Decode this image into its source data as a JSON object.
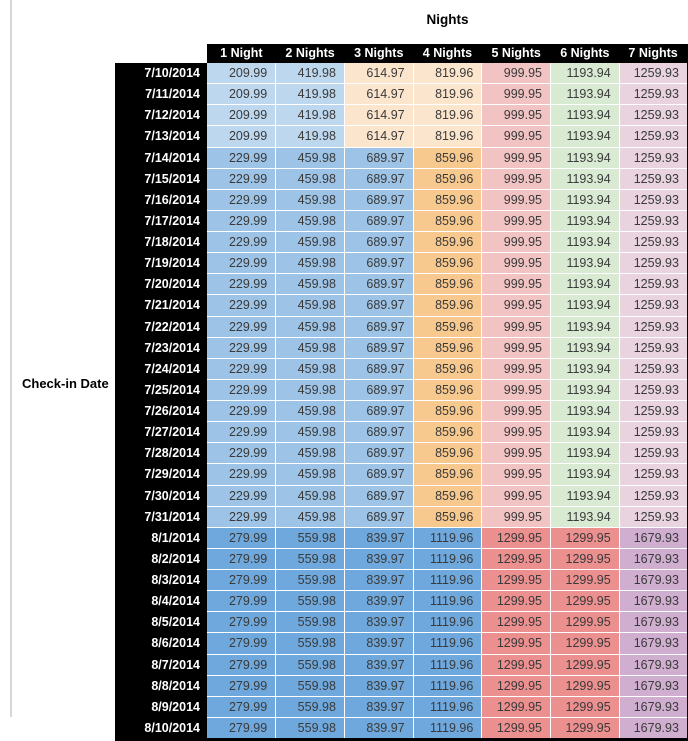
{
  "palette": {
    "light_blue": "#BDD7EE",
    "mid_blue": "#9DC3E6",
    "dark_blue": "#6FA8DC",
    "light_orange": "#FCE5CD",
    "mid_orange": "#F8C98E",
    "light_red": "#F1C3C3",
    "light_green": "#D9EAD3",
    "light_mauve": "#E8D3DF",
    "salmon": "#EC8F8F",
    "light_purple": "#CFAED0",
    "header_bg": "#000000",
    "header_text": "#FFFFFF",
    "cell_text": "#3A3A3A"
  },
  "chart_data": {
    "type": "table",
    "title": "Nights",
    "row_axis_label": "Check-in Date",
    "columns": [
      "1 Night",
      "2 Nights",
      "3 Nights",
      "4 Nights",
      "5 Nights",
      "6 Nights",
      "7 Nights"
    ],
    "bands": {
      "early": [
        "light_blue",
        "light_blue",
        "light_orange",
        "light_orange",
        "light_red",
        "light_green",
        "light_mauve"
      ],
      "mid": [
        "mid_blue",
        "mid_blue",
        "mid_blue",
        "mid_orange",
        "light_red",
        "light_green",
        "light_mauve"
      ],
      "august": [
        "dark_blue",
        "dark_blue",
        "dark_blue",
        "dark_blue",
        "salmon",
        "salmon",
        "light_purple"
      ]
    },
    "rows": [
      {
        "date": "7/10/2014",
        "band": "early",
        "values": [
          "209.99",
          "419.98",
          "614.97",
          "819.96",
          "999.95",
          "1193.94",
          "1259.93"
        ]
      },
      {
        "date": "7/11/2014",
        "band": "early",
        "values": [
          "209.99",
          "419.98",
          "614.97",
          "819.96",
          "999.95",
          "1193.94",
          "1259.93"
        ]
      },
      {
        "date": "7/12/2014",
        "band": "early",
        "values": [
          "209.99",
          "419.98",
          "614.97",
          "819.96",
          "999.95",
          "1193.94",
          "1259.93"
        ]
      },
      {
        "date": "7/13/2014",
        "band": "early",
        "values": [
          "209.99",
          "419.98",
          "614.97",
          "819.96",
          "999.95",
          "1193.94",
          "1259.93"
        ]
      },
      {
        "date": "7/14/2014",
        "band": "mid",
        "values": [
          "229.99",
          "459.98",
          "689.97",
          "859.96",
          "999.95",
          "1193.94",
          "1259.93"
        ]
      },
      {
        "date": "7/15/2014",
        "band": "mid",
        "values": [
          "229.99",
          "459.98",
          "689.97",
          "859.96",
          "999.95",
          "1193.94",
          "1259.93"
        ]
      },
      {
        "date": "7/16/2014",
        "band": "mid",
        "values": [
          "229.99",
          "459.98",
          "689.97",
          "859.96",
          "999.95",
          "1193.94",
          "1259.93"
        ]
      },
      {
        "date": "7/17/2014",
        "band": "mid",
        "values": [
          "229.99",
          "459.98",
          "689.97",
          "859.96",
          "999.95",
          "1193.94",
          "1259.93"
        ]
      },
      {
        "date": "7/18/2014",
        "band": "mid",
        "values": [
          "229.99",
          "459.98",
          "689.97",
          "859.96",
          "999.95",
          "1193.94",
          "1259.93"
        ]
      },
      {
        "date": "7/19/2014",
        "band": "mid",
        "values": [
          "229.99",
          "459.98",
          "689.97",
          "859.96",
          "999.95",
          "1193.94",
          "1259.93"
        ]
      },
      {
        "date": "7/20/2014",
        "band": "mid",
        "values": [
          "229.99",
          "459.98",
          "689.97",
          "859.96",
          "999.95",
          "1193.94",
          "1259.93"
        ]
      },
      {
        "date": "7/21/2014",
        "band": "mid",
        "values": [
          "229.99",
          "459.98",
          "689.97",
          "859.96",
          "999.95",
          "1193.94",
          "1259.93"
        ]
      },
      {
        "date": "7/22/2014",
        "band": "mid",
        "values": [
          "229.99",
          "459.98",
          "689.97",
          "859.96",
          "999.95",
          "1193.94",
          "1259.93"
        ]
      },
      {
        "date": "7/23/2014",
        "band": "mid",
        "values": [
          "229.99",
          "459.98",
          "689.97",
          "859.96",
          "999.95",
          "1193.94",
          "1259.93"
        ]
      },
      {
        "date": "7/24/2014",
        "band": "mid",
        "values": [
          "229.99",
          "459.98",
          "689.97",
          "859.96",
          "999.95",
          "1193.94",
          "1259.93"
        ]
      },
      {
        "date": "7/25/2014",
        "band": "mid",
        "values": [
          "229.99",
          "459.98",
          "689.97",
          "859.96",
          "999.95",
          "1193.94",
          "1259.93"
        ]
      },
      {
        "date": "7/26/2014",
        "band": "mid",
        "values": [
          "229.99",
          "459.98",
          "689.97",
          "859.96",
          "999.95",
          "1193.94",
          "1259.93"
        ]
      },
      {
        "date": "7/27/2014",
        "band": "mid",
        "values": [
          "229.99",
          "459.98",
          "689.97",
          "859.96",
          "999.95",
          "1193.94",
          "1259.93"
        ]
      },
      {
        "date": "7/28/2014",
        "band": "mid",
        "values": [
          "229.99",
          "459.98",
          "689.97",
          "859.96",
          "999.95",
          "1193.94",
          "1259.93"
        ]
      },
      {
        "date": "7/29/2014",
        "band": "mid",
        "values": [
          "229.99",
          "459.98",
          "689.97",
          "859.96",
          "999.95",
          "1193.94",
          "1259.93"
        ]
      },
      {
        "date": "7/30/2014",
        "band": "mid",
        "values": [
          "229.99",
          "459.98",
          "689.97",
          "859.96",
          "999.95",
          "1193.94",
          "1259.93"
        ]
      },
      {
        "date": "7/31/2014",
        "band": "mid",
        "values": [
          "229.99",
          "459.98",
          "689.97",
          "859.96",
          "999.95",
          "1193.94",
          "1259.93"
        ]
      },
      {
        "date": "8/1/2014",
        "band": "august",
        "values": [
          "279.99",
          "559.98",
          "839.97",
          "1119.96",
          "1299.95",
          "1299.95",
          "1679.93"
        ]
      },
      {
        "date": "8/2/2014",
        "band": "august",
        "values": [
          "279.99",
          "559.98",
          "839.97",
          "1119.96",
          "1299.95",
          "1299.95",
          "1679.93"
        ]
      },
      {
        "date": "8/3/2014",
        "band": "august",
        "values": [
          "279.99",
          "559.98",
          "839.97",
          "1119.96",
          "1299.95",
          "1299.95",
          "1679.93"
        ]
      },
      {
        "date": "8/4/2014",
        "band": "august",
        "values": [
          "279.99",
          "559.98",
          "839.97",
          "1119.96",
          "1299.95",
          "1299.95",
          "1679.93"
        ]
      },
      {
        "date": "8/5/2014",
        "band": "august",
        "values": [
          "279.99",
          "559.98",
          "839.97",
          "1119.96",
          "1299.95",
          "1299.95",
          "1679.93"
        ]
      },
      {
        "date": "8/6/2014",
        "band": "august",
        "values": [
          "279.99",
          "559.98",
          "839.97",
          "1119.96",
          "1299.95",
          "1299.95",
          "1679.93"
        ]
      },
      {
        "date": "8/7/2014",
        "band": "august",
        "values": [
          "279.99",
          "559.98",
          "839.97",
          "1119.96",
          "1299.95",
          "1299.95",
          "1679.93"
        ]
      },
      {
        "date": "8/8/2014",
        "band": "august",
        "values": [
          "279.99",
          "559.98",
          "839.97",
          "1119.96",
          "1299.95",
          "1299.95",
          "1679.93"
        ]
      },
      {
        "date": "8/9/2014",
        "band": "august",
        "values": [
          "279.99",
          "559.98",
          "839.97",
          "1119.96",
          "1299.95",
          "1299.95",
          "1679.93"
        ]
      },
      {
        "date": "8/10/2014",
        "band": "august",
        "values": [
          "279.99",
          "559.98",
          "839.97",
          "1119.96",
          "1299.95",
          "1299.95",
          "1679.93"
        ]
      }
    ]
  }
}
